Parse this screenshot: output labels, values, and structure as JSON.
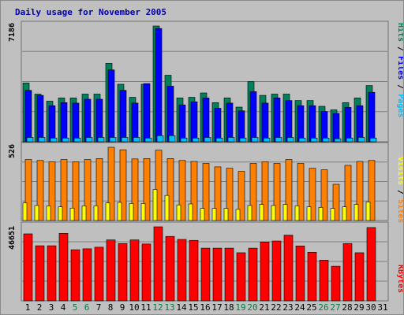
{
  "title": "Daily usage for November 2005",
  "colors": {
    "hits": "#00805c",
    "files": "#0000ff",
    "pages": "#00c0ff",
    "visits": "#ffff00",
    "sites": "#ff8000",
    "kbytes": "#ff0000",
    "title": "#0000aa",
    "day_green": "#008040",
    "day_dark": "#000000"
  },
  "y_axis_max": {
    "top": "7186",
    "middle": "526",
    "bottom": "46651"
  },
  "panel_labels": {
    "top": [
      {
        "text": "Pages",
        "color": "#00c0ff"
      },
      {
        "text": " / ",
        "color": "#000000"
      },
      {
        "text": "Files",
        "color": "#0000ff"
      },
      {
        "text": " / ",
        "color": "#000000"
      },
      {
        "text": "Hits",
        "color": "#00805c"
      }
    ],
    "middle": [
      {
        "text": "Sites",
        "color": "#ff8000"
      },
      {
        "text": " / ",
        "color": "#000000"
      },
      {
        "text": "Visits",
        "color": "#ffff00"
      }
    ],
    "bottom": [
      {
        "text": "KBytes",
        "color": "#ff0000"
      }
    ]
  },
  "chart_data": {
    "type": "bar",
    "title": "Daily usage for November 2005",
    "categories": [
      "1",
      "2",
      "3",
      "4",
      "5",
      "6",
      "7",
      "8",
      "9",
      "10",
      "11",
      "12",
      "13",
      "14",
      "15",
      "16",
      "17",
      "18",
      "19",
      "20",
      "21",
      "22",
      "23",
      "24",
      "25",
      "26",
      "27",
      "28",
      "29",
      "30",
      "31"
    ],
    "weekend_days": [
      "5",
      "6",
      "12",
      "13",
      "19",
      "20",
      "26",
      "27"
    ],
    "panels": [
      {
        "name": "top",
        "ymax": 7186,
        "series": [
          {
            "name": "Hits",
            "values": [
              3650,
              2960,
              2520,
              2720,
              2720,
              2960,
              2960,
              4870,
              3570,
              2760,
              3570,
              7186,
              4130,
              2720,
              2760,
              3030,
              2430,
              2720,
              2150,
              3730,
              2880,
              2960,
              2960,
              2560,
              2560,
              2200,
              1980,
              2430,
              2720,
              3490,
              null
            ]
          },
          {
            "name": "Files",
            "values": [
              3190,
              2880,
              2240,
              2430,
              2400,
              2640,
              2640,
              4460,
              3190,
              2400,
              3610,
              7030,
              3450,
              2290,
              2480,
              2720,
              2080,
              2400,
              1920,
              3110,
              2400,
              2720,
              2560,
              2240,
              2240,
              1880,
              1760,
              2130,
              2240,
              3070,
              null
            ]
          },
          {
            "name": "Pages",
            "values": [
              270,
              270,
              230,
              230,
              230,
              270,
              270,
              270,
              270,
              270,
              230,
              380,
              380,
              230,
              230,
              270,
              230,
              270,
              230,
              270,
              230,
              270,
              270,
              230,
              230,
              230,
              190,
              230,
              270,
              230,
              null
            ]
          }
        ]
      },
      {
        "name": "middle",
        "ymax": 526,
        "series": [
          {
            "name": "Sites",
            "values": [
              438,
              431,
              421,
              438,
              421,
              438,
              445,
              526,
              508,
              442,
              445,
              505,
              445,
              431,
              424,
              410,
              385,
              375,
              353,
              410,
              421,
              410,
              438,
              410,
              375,
              364,
              260,
              396,
              424,
              431,
              null
            ]
          },
          {
            "name": "Visits",
            "values": [
              126,
              108,
              105,
              98,
              89,
              105,
              105,
              126,
              130,
              122,
              122,
              223,
              180,
              112,
              119,
              87,
              87,
              87,
              80,
              108,
              115,
              108,
              115,
              105,
              98,
              94,
              87,
              98,
              115,
              133,
              null
            ]
          }
        ]
      },
      {
        "name": "bottom",
        "ymax": 46651,
        "series": [
          {
            "name": "KBytes",
            "values": [
              42200,
              34700,
              34700,
              42500,
              32200,
              32800,
              33800,
              38400,
              36100,
              38400,
              35800,
              46651,
              40600,
              38700,
              38100,
              33200,
              33200,
              33200,
              30300,
              33200,
              37100,
              37700,
              41400,
              34600,
              30600,
              25600,
              21800,
              36100,
              30300,
              46200,
              null
            ]
          }
        ]
      }
    ]
  }
}
